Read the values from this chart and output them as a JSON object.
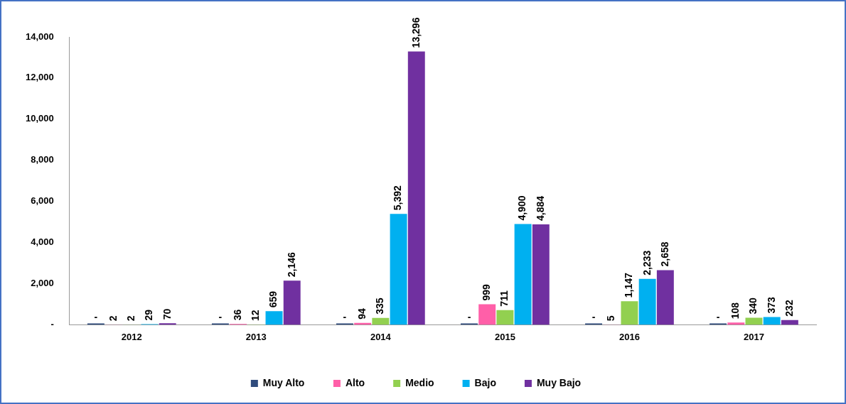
{
  "chart_data": {
    "type": "bar",
    "categories": [
      "2012",
      "2013",
      "2014",
      "2015",
      "2016",
      "2017"
    ],
    "series": [
      {
        "name": "Muy Alto",
        "color": "#2f4b7c",
        "values": [
          0,
          0,
          0,
          0,
          0,
          0
        ],
        "value_labels": [
          "-",
          "-",
          "-",
          "-",
          "-",
          "-"
        ]
      },
      {
        "name": "Alto",
        "color": "#ff5fa8",
        "values": [
          2,
          36,
          94,
          999,
          5,
          108
        ],
        "value_labels": [
          "2",
          "36",
          "94",
          "999",
          "5",
          "108"
        ]
      },
      {
        "name": "Medio",
        "color": "#92d050",
        "values": [
          2,
          12,
          335,
          711,
          1147,
          340
        ],
        "value_labels": [
          "2",
          "12",
          "335",
          "711",
          "1,147",
          "340"
        ]
      },
      {
        "name": "Bajo",
        "color": "#00b0f0",
        "values": [
          29,
          659,
          5392,
          4900,
          2233,
          373
        ],
        "value_labels": [
          "29",
          "659",
          "5,392",
          "4,900",
          "2,233",
          "373"
        ]
      },
      {
        "name": "Muy Bajo",
        "color": "#7030a0",
        "values": [
          70,
          2146,
          13296,
          4884,
          2658,
          232
        ],
        "value_labels": [
          "70",
          "2,146",
          "13,296",
          "4,884",
          "2,658",
          "232"
        ]
      }
    ],
    "ylim": [
      0,
      14000
    ],
    "yticks": [
      {
        "value": 0,
        "label": "-"
      },
      {
        "value": 2000,
        "label": "2,000"
      },
      {
        "value": 4000,
        "label": "4,000"
      },
      {
        "value": 6000,
        "label": "6,000"
      },
      {
        "value": 8000,
        "label": "8,000"
      },
      {
        "value": 10000,
        "label": "10,000"
      },
      {
        "value": 12000,
        "label": "12,000"
      },
      {
        "value": 14000,
        "label": "14,000"
      }
    ],
    "grid": false,
    "legend": "bottom"
  }
}
